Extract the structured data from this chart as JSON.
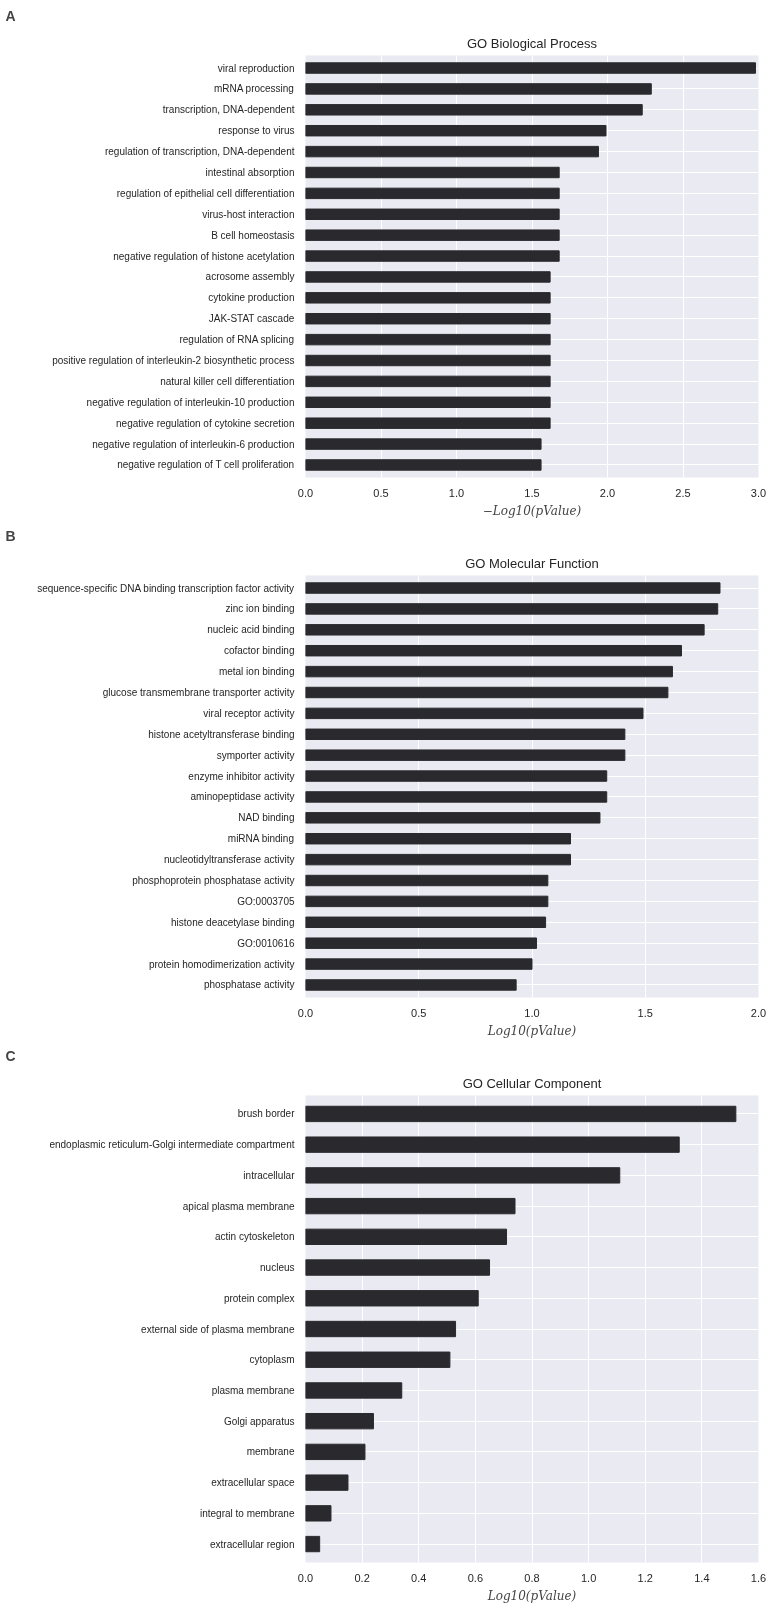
{
  "chart_data": [
    {
      "type": "bar",
      "orientation": "horizontal",
      "title": "GO Biological Process",
      "annotations": [
        "A"
      ],
      "xlabel": "−Log10(pValue)",
      "categories": [
        "viral reproduction",
        "mRNA processing",
        "transcription, DNA-dependent",
        "response to virus",
        "regulation of transcription, DNA-dependent",
        "intestinal absorption",
        "regulation of epithelial cell differentiation",
        "virus-host interaction",
        "B cell homeostasis",
        "negative regulation of histone acetylation",
        "acrosome assembly",
        "cytokine production",
        "JAK-STAT cascade",
        "regulation of RNA splicing",
        "positive regulation of interleukin-2 biosynthetic process",
        "natural killer cell differentiation",
        "negative regulation of interleukin-10 production",
        "negative regulation of cytokine secretion",
        "negative regulation of interleukin-6 production",
        "negative regulation of T cell proliferation"
      ],
      "values": [
        2.98,
        2.29,
        2.23,
        1.99,
        1.94,
        1.68,
        1.68,
        1.68,
        1.68,
        1.68,
        1.62,
        1.62,
        1.62,
        1.62,
        1.62,
        1.62,
        1.62,
        1.62,
        1.56,
        1.56
      ],
      "color": "#2a2a2e",
      "xlim": [
        0,
        3.0
      ],
      "xticks": [
        {
          "value": 0,
          "label": "0.0"
        },
        0.5,
        {
          "value": 1,
          "label": "1.0"
        },
        1.5,
        {
          "value": 2,
          "label": "2.0"
        },
        2.5,
        {
          "value": 3,
          "label": "3.0"
        }
      ],
      "grid": true
    },
    {
      "type": "bar",
      "orientation": "horizontal",
      "title": "GO Molecular Function",
      "annotations": [
        "B"
      ],
      "xlabel": "Log10(pValue)",
      "categories": [
        "sequence-specific DNA binding transcription factor activity",
        "zinc ion binding",
        "nucleic acid binding",
        "cofactor binding",
        "metal ion binding",
        "glucose transmembrane transporter activity",
        "viral receptor activity",
        "histone acetyltransferase binding",
        "symporter activity",
        "enzyme inhibitor activity",
        "aminopeptidase activity",
        "NAD binding",
        "miRNA binding",
        "nucleotidyltransferase activity",
        "phosphoprotein phosphatase activity",
        "GO:0003705",
        "histone deacetylase binding",
        "GO:0010616",
        "protein homodimerization activity",
        "phosphatase activity"
      ],
      "values": [
        1.83,
        1.82,
        1.76,
        1.66,
        1.62,
        1.6,
        1.49,
        1.41,
        1.41,
        1.33,
        1.33,
        1.3,
        1.17,
        1.17,
        1.07,
        1.07,
        1.06,
        1.02,
        1.0,
        0.93
      ],
      "color": "#2a2a2e",
      "xlim": [
        0,
        2.0
      ],
      "xticks": [
        {
          "value": 0,
          "label": "0.0"
        },
        0.5,
        {
          "value": 1,
          "label": "1.0"
        },
        1.5,
        {
          "value": 2,
          "label": "2.0"
        }
      ],
      "grid": true
    },
    {
      "type": "bar",
      "orientation": "horizontal",
      "title": "GO Cellular Component",
      "annotations": [
        "C"
      ],
      "xlabel": "Log10(pValue)",
      "categories": [
        "brush border",
        "endoplasmic reticulum-Golgi intermediate compartment",
        "intracellular",
        "apical plasma membrane",
        "actin cytoskeleton",
        "nucleus",
        "protein complex",
        "external side of plasma membrane",
        "cytoplasm",
        "plasma membrane",
        "Golgi apparatus",
        "membrane",
        "extracellular space",
        "integral to membrane",
        "extracellular region"
      ],
      "values": [
        1.52,
        1.32,
        1.11,
        0.74,
        0.71,
        0.65,
        0.61,
        0.53,
        0.51,
        0.34,
        0.24,
        0.21,
        0.15,
        0.09,
        0.05
      ],
      "color": "#2a2a2e",
      "xlim": [
        0,
        1.6
      ],
      "xticks": [
        {
          "value": 0,
          "label": "0.0"
        },
        0.2,
        0.4,
        0.6,
        0.8,
        {
          "value": 1,
          "label": "1.0"
        },
        1.2,
        1.4,
        1.6
      ],
      "grid": true
    }
  ]
}
